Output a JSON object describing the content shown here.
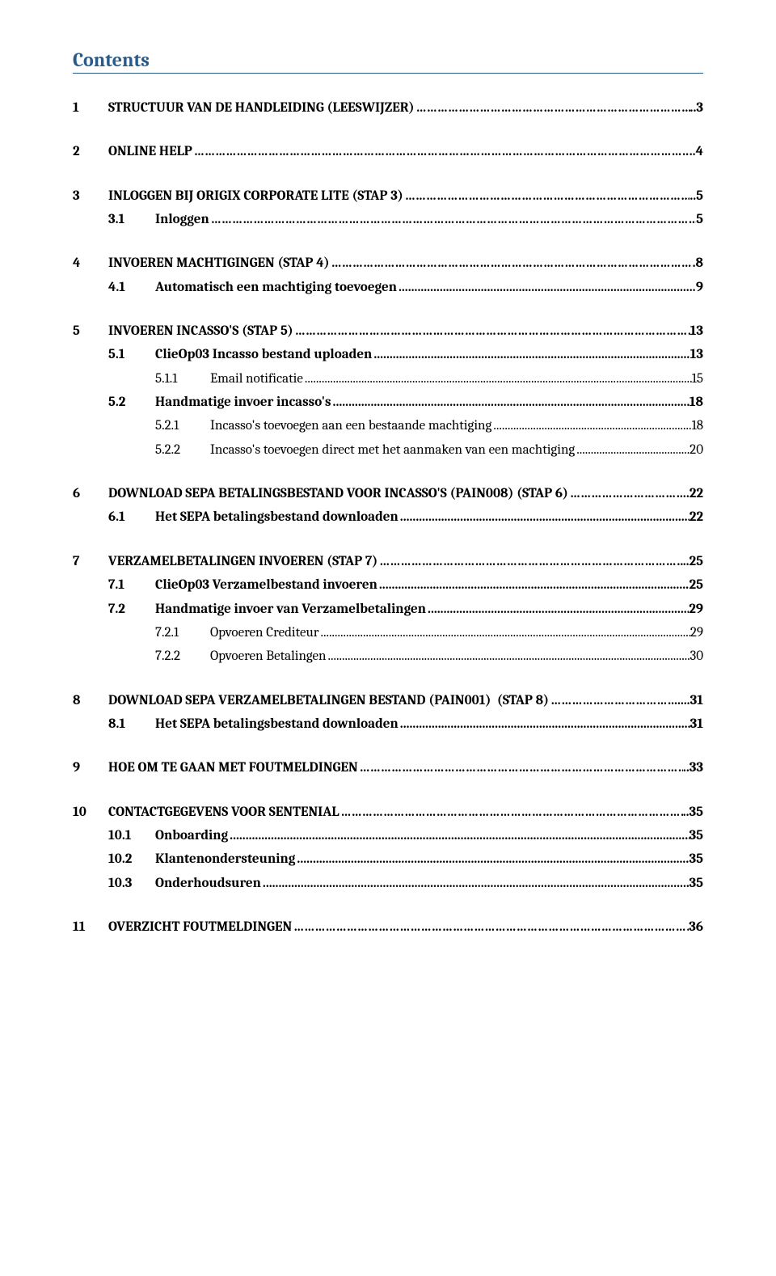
{
  "title": "Contents",
  "leader_dots": "……………………………………………………………………………………………………………………………………………………………………………………",
  "leader_periods": "................................................................................................................................................................................................................",
  "toc": [
    {
      "type": "section",
      "items": [
        {
          "lvl": 1,
          "num": "1",
          "text": "STRUCTUUR VAN DE HANDLEIDING (LEESWIJZER)",
          "leader": "dots",
          "page": "..3"
        }
      ]
    },
    {
      "type": "section",
      "items": [
        {
          "lvl": 1,
          "num": "2",
          "text": "ONLINE HELP",
          "leader": "dots",
          "page": "..4"
        }
      ]
    },
    {
      "type": "section",
      "items": [
        {
          "lvl": 1,
          "num": "3",
          "text": "INLOGGEN BIJ ORIGIX CORPORATE LITE (STAP 3)",
          "leader": "dots",
          "page": "..5"
        },
        {
          "lvl": 2,
          "num": "3.1",
          "text": "Inloggen",
          "leader": "dots",
          "page": " 5"
        }
      ]
    },
    {
      "type": "section",
      "items": [
        {
          "lvl": 1,
          "num": "4",
          "text": "INVOEREN MACHTIGINGEN (STAP 4)",
          "leader": "dots",
          "page": ".8"
        },
        {
          "lvl": 2,
          "num": "4.1",
          "text": "Automatisch een machtiging toevoegen",
          "leader": "periods",
          "page": " 9"
        }
      ]
    },
    {
      "type": "section",
      "items": [
        {
          "lvl": 1,
          "num": "5",
          "text": "INVOEREN INCASSO'S (STAP 5)",
          "leader": "dots",
          "page": "13"
        },
        {
          "lvl": 2,
          "num": "5.1",
          "text": "ClieOp03 Incasso bestand uploaden",
          "leader": "periods",
          "page": " 13"
        },
        {
          "lvl": 3,
          "num": "5.1.1",
          "text": "Email notificatie",
          "leader": "periods",
          "page": "15"
        },
        {
          "lvl": 2,
          "num": "5.2",
          "text": "Handmatige invoer incasso's",
          "leader": "periods",
          "page": " 18"
        },
        {
          "lvl": 3,
          "num": "5.2.1",
          "text": "Incasso's toevoegen aan een bestaande machtiging",
          "leader": "periods",
          "page": "18"
        },
        {
          "lvl": 3,
          "num": "5.2.2",
          "text": "Incasso's toevoegen direct met het aanmaken van een machtiging",
          "leader": "periods",
          "page": "20"
        }
      ]
    },
    {
      "type": "section",
      "items": [
        {
          "lvl": 1,
          "num": "6",
          "text": "DOWNLOAD SEPA BETALINGSBESTAND VOOR INCASSO'S (PAIN008) (STAP 6)",
          "leader": "dots",
          "page": ".22"
        },
        {
          "lvl": 2,
          "num": "6.1",
          "text": "Het SEPA betalingsbestand downloaden",
          "leader": "periods",
          "page": " 22"
        }
      ]
    },
    {
      "type": "section",
      "items": [
        {
          "lvl": 1,
          "num": "7",
          "text": "VERZAMELBETALINGEN INVOEREN (STAP 7)",
          "leader": "dots",
          "page": "..25"
        },
        {
          "lvl": 2,
          "num": "7.1",
          "text": "ClieOp03 Verzamelbestand invoeren",
          "leader": "periods",
          "page": " 25"
        },
        {
          "lvl": 2,
          "num": "7.2",
          "text": "Handmatige invoer van Verzamelbetalingen",
          "leader": "periods",
          "page": " 29"
        },
        {
          "lvl": 3,
          "num": "7.2.1",
          "text": "Opvoeren Crediteur",
          "leader": "periods",
          "page": "29"
        },
        {
          "lvl": 3,
          "num": "7.2.2",
          "text": "Opvoeren Betalingen",
          "leader": "periods",
          "page": "30"
        }
      ]
    },
    {
      "type": "section",
      "items": [
        {
          "lvl": 1,
          "num": "8",
          "text": "DOWNLOAD SEPA VERZAMELBETALINGEN BESTAND (PAIN001)  (STAP 8)",
          "leader": "dots",
          "page": "....31"
        },
        {
          "lvl": 2,
          "num": "8.1",
          "text": "Het SEPA betalingsbestand downloaden",
          "leader": "periods",
          "page": " 31"
        }
      ]
    },
    {
      "type": "section",
      "items": [
        {
          "lvl": 1,
          "num": "9",
          "text": "HOE OM TE GAAN MET FOUTMELDINGEN",
          "leader": "dots",
          "page": "..33"
        }
      ]
    },
    {
      "type": "section",
      "items": [
        {
          "lvl": 1,
          "num": "10",
          "text": "CONTACTGEGEVENS VOOR SENTENIAL",
          "leader": "dots",
          "page": "..35"
        },
        {
          "lvl": 2,
          "num": "10.1",
          "text": "Onboarding",
          "leader": "periods",
          "page": " 35"
        },
        {
          "lvl": 2,
          "num": "10.2",
          "text": "Klantenondersteuning",
          "leader": "periods",
          "page": " 35"
        },
        {
          "lvl": 2,
          "num": "10.3",
          "text": "Onderhoudsuren",
          "leader": "periods",
          "page": " 35"
        }
      ]
    },
    {
      "type": "section",
      "items": [
        {
          "lvl": 1,
          "num": "11",
          "text": "OVERZICHT FOUTMELDINGEN",
          "leader": "dots",
          "page": "36"
        }
      ]
    }
  ]
}
